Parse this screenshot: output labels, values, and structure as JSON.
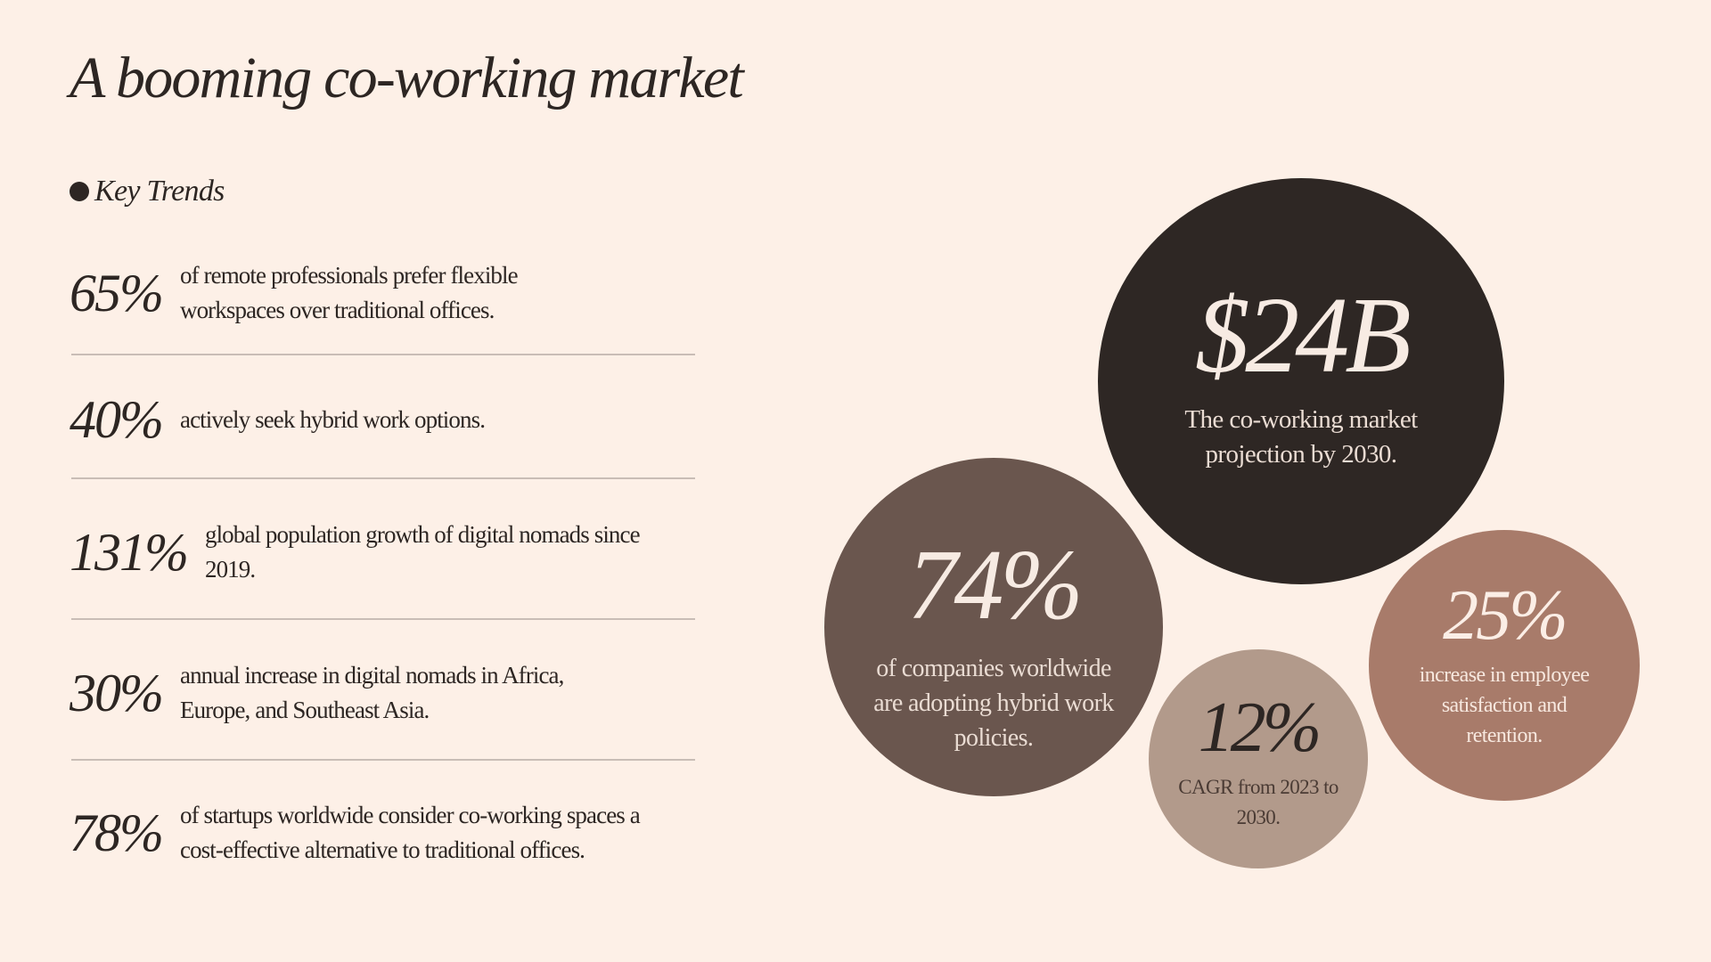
{
  "title": "A booming co-working market",
  "section_heading": "Key Trends",
  "trends": [
    {
      "value": "65%",
      "description": "of remote professionals prefer flexible workspaces over traditional offices."
    },
    {
      "value": "40%",
      "description": "actively seek hybrid work options."
    },
    {
      "value": "131%",
      "description": "global population growth of digital nomads since 2019."
    },
    {
      "value": "30%",
      "description": "annual increase in digital nomads in Africa, Europe, and Southeast Asia."
    },
    {
      "value": "78%",
      "description": "of startups worldwide consider co-working spaces a cost-effective alternative to traditional offices."
    }
  ],
  "stats": {
    "market": {
      "value": "$24B",
      "caption": "The co-working market projection by 2030."
    },
    "hybrid": {
      "value": "74%",
      "caption": "of companies worldwide are adopting hybrid work policies."
    },
    "cagr": {
      "value": "12%",
      "caption": "CAGR from 2023 to 2030."
    },
    "satisfaction": {
      "value": "25%",
      "caption": "increase in employee satisfaction and retention."
    }
  },
  "colors": {
    "background": "#fdf0e7",
    "text": "#2d2623",
    "circle_market": "#2e2724",
    "circle_hybrid": "#6a564e",
    "circle_cagr": "#b29a8b",
    "circle_satisfaction": "#a87b6a",
    "divider": "#c9bdb6"
  }
}
